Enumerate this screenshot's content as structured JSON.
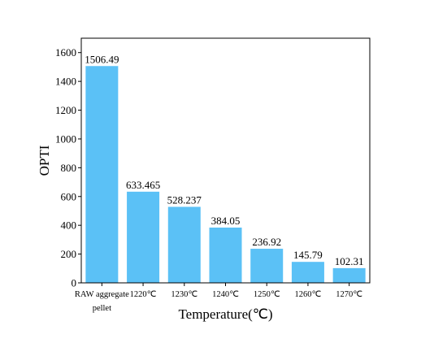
{
  "chart_data": {
    "type": "bar",
    "title": "",
    "xlabel": "Temperature(℃)",
    "ylabel": "OPTI",
    "ylim": [
      0,
      1700
    ],
    "yticks": [
      0,
      200,
      400,
      600,
      800,
      1000,
      1200,
      1400,
      1600
    ],
    "grid": false,
    "legend": "none",
    "bar_color": "#5BC1F6",
    "categories": [
      [
        "RAW aggregate",
        "pellet"
      ],
      [
        "1220℃"
      ],
      [
        "1230℃"
      ],
      [
        "1240℃"
      ],
      [
        "1250℃"
      ],
      [
        "1260℃"
      ],
      [
        "1270℃"
      ]
    ],
    "values": [
      1506.49,
      633.465,
      528.237,
      384.05,
      236.92,
      145.79,
      102.31
    ],
    "value_labels": [
      "1506.49",
      "633.465",
      "528.237",
      "384.05",
      "236.92",
      "145.79",
      "102.31"
    ]
  }
}
